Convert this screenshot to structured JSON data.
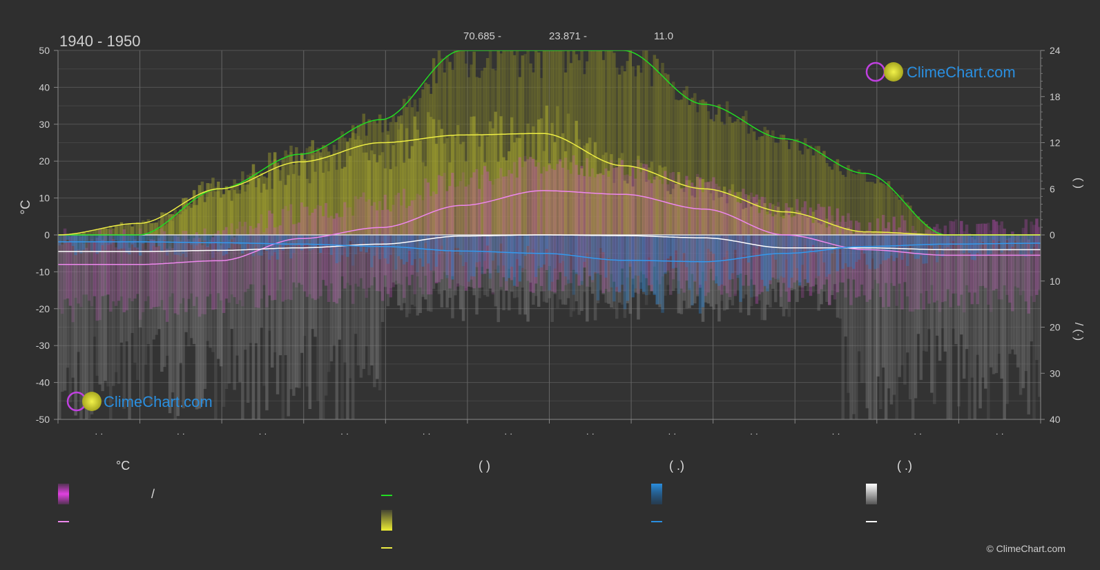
{
  "chart_data": {
    "type": "area",
    "title": "1940 - 1950",
    "header_values": [
      "70.685 -",
      "23.871 -",
      "11.0"
    ],
    "ylabel_left": "°C",
    "ylabel_right_top": "( )",
    "ylabel_right_bottom": "/ (·)",
    "ylim_left": [
      -50,
      50
    ],
    "yticks_left": [
      50,
      40,
      30,
      20,
      10,
      0,
      -10,
      -20,
      -30,
      -40,
      -50
    ],
    "ylim_right_top": [
      0,
      24
    ],
    "yticks_right_top": [
      24,
      18,
      12,
      6,
      0
    ],
    "ylim_right_bottom": [
      0,
      40
    ],
    "yticks_right_bottom": [
      10,
      20,
      30,
      40
    ],
    "xtick_labels": [
      "· ·",
      "· ·",
      "· ·",
      "· ·",
      "· ·",
      "· ·",
      "· ·",
      "· ·",
      "· ·",
      "· ·",
      "· ·",
      "· ·"
    ],
    "grid": true,
    "x": [
      0,
      30,
      60,
      90,
      120,
      150,
      180,
      210,
      240,
      270,
      300,
      330,
      365
    ],
    "series": [
      {
        "key": "daylight",
        "color": "#22dd22",
        "values": [
          0,
          0,
          6.0,
          10.5,
          15.0,
          24,
          24,
          24,
          17.0,
          12.5,
          8.0,
          0,
          0
        ]
      },
      {
        "key": "sunshine",
        "color": "#eeee44",
        "values": [
          0,
          1.5,
          6.0,
          9.5,
          12.0,
          13.0,
          13.2,
          9.0,
          6.0,
          3.0,
          0.4,
          0,
          0
        ]
      },
      {
        "key": "temp_max",
        "color": "#ee88ee",
        "values": [
          -8,
          -8,
          -7,
          -1,
          2,
          8,
          12,
          11,
          7,
          0,
          -4,
          -5.5,
          -5.5
        ]
      },
      {
        "key": "temp_min",
        "color": "#ffffff",
        "values": [
          -4.5,
          -4.5,
          -4.2,
          -3.5,
          -2.5,
          -0.3,
          0,
          -0.2,
          -0.8,
          -3.5,
          -3.5,
          -4,
          -4
        ]
      },
      {
        "key": "precipitation",
        "color": "#3399ee",
        "values": [
          1.5,
          1.5,
          1.7,
          2.0,
          2.5,
          3.5,
          4.0,
          5.5,
          5.8,
          4.0,
          2.5,
          2.0,
          1.8
        ]
      }
    ],
    "colors": {
      "temp_range": "#e040e0",
      "sunshine_fill": "#dddd33",
      "rain_fill": "#2a8fe0",
      "snow_fill": "#cccccc"
    }
  },
  "logo": {
    "text": "ClimeChart.com"
  },
  "legend": {
    "col1_header": "°C",
    "col1_item1_text": "/",
    "col2_header": "(           )",
    "col3_header": "(   .)",
    "col4_header": "(   .)"
  },
  "copyright": "© ClimeChart.com"
}
